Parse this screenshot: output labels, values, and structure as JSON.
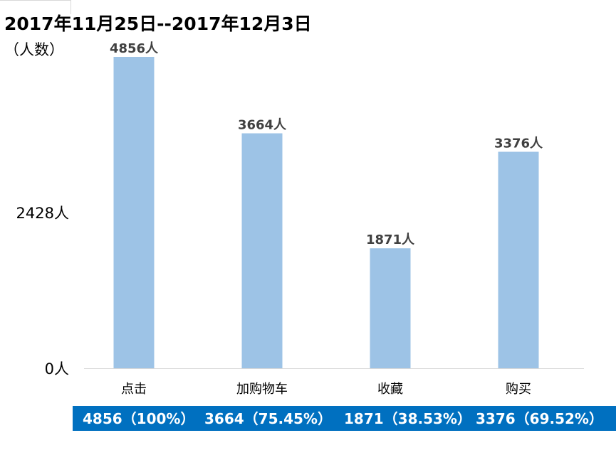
{
  "header": {
    "title": "2017年11月25日--2017年12月3日",
    "unit": "（人数）"
  },
  "chart_data": {
    "type": "bar",
    "categories": [
      "点击",
      "加购物车",
      "收藏",
      "购买"
    ],
    "values": [
      4856,
      3664,
      1871,
      3376
    ],
    "data_labels": [
      "4856人",
      "3664人",
      "1871人",
      "3376人"
    ],
    "yticks": [
      {
        "value": 0,
        "label": "0人"
      },
      {
        "value": 2428,
        "label": "2428人"
      }
    ],
    "ylim": [
      0,
      4856
    ],
    "grid": false,
    "legend": "none",
    "bar_color": "#9dc3e6"
  },
  "summary": {
    "background": "#0070c0",
    "items": [
      "4856（100%）",
      "3664（75.45%）",
      "1871（38.53%）",
      "3376（69.52%）"
    ]
  }
}
